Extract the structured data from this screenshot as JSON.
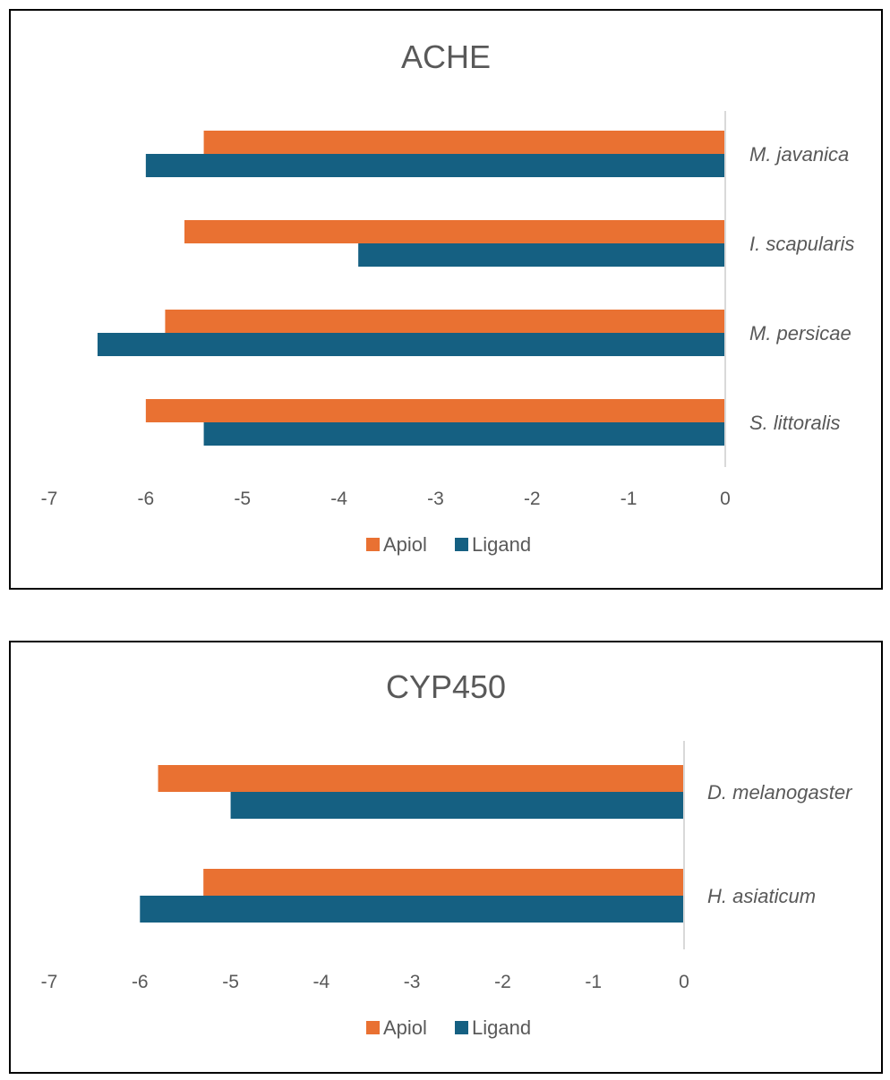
{
  "chart_data": [
    {
      "type": "bar",
      "orientation": "horizontal",
      "title": "ACHE",
      "categories": [
        "M. javanica",
        "I. scapularis",
        "M. persicae",
        "S. littoralis"
      ],
      "series": [
        {
          "name": "Apiol",
          "values": [
            -5.4,
            -5.6,
            -5.8,
            -6.0
          ]
        },
        {
          "name": "Ligand",
          "values": [
            -6.0,
            -3.8,
            -6.5,
            -5.4
          ]
        }
      ],
      "xlim": [
        -7,
        0
      ],
      "ticks": [
        "-7",
        "-6",
        "-5",
        "-4",
        "-3",
        "-2",
        "-1",
        "0"
      ],
      "legend_position": "bottom",
      "colors": {
        "Apiol": "#E97132",
        "Ligand": "#156082"
      }
    },
    {
      "type": "bar",
      "orientation": "horizontal",
      "title": "CYP450",
      "categories": [
        "D. melanogaster",
        "H. asiaticum"
      ],
      "series": [
        {
          "name": "Apiol",
          "values": [
            -5.8,
            -5.3
          ]
        },
        {
          "name": "Ligand",
          "values": [
            -5.0,
            -6.0
          ]
        }
      ],
      "xlim": [
        -7,
        0
      ],
      "ticks": [
        "-7",
        "-6",
        "-5",
        "-4",
        "-3",
        "-2",
        "-1",
        "0"
      ],
      "legend_position": "bottom",
      "colors": {
        "Apiol": "#E97132",
        "Ligand": "#156082"
      }
    }
  ]
}
